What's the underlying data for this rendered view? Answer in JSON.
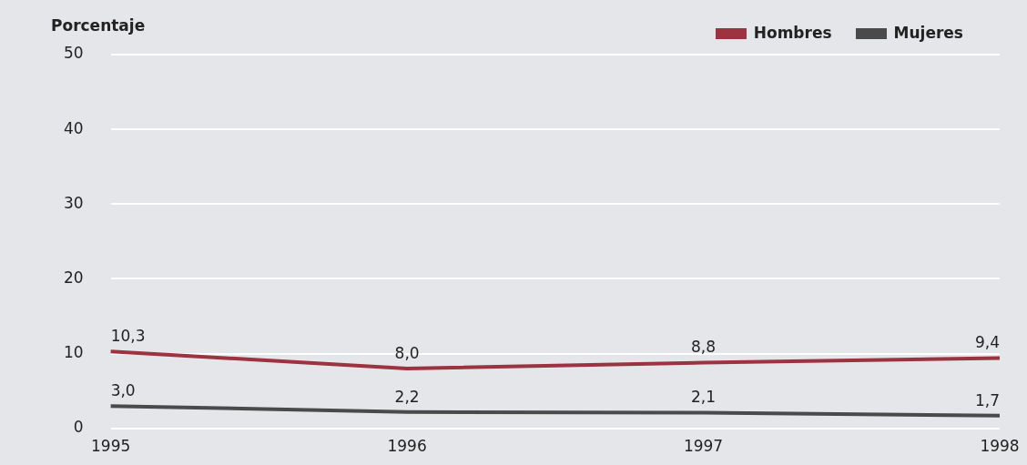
{
  "chart_data": {
    "type": "line",
    "ylabel": "Porcentaje",
    "categories": [
      "1995",
      "1996",
      "1997",
      "1998"
    ],
    "series": [
      {
        "name": "Hombres",
        "color": "#9b3340",
        "values": [
          10.3,
          8.0,
          8.8,
          9.4
        ],
        "value_labels": [
          "10,3",
          "8,0",
          "8,8",
          "9,4"
        ]
      },
      {
        "name": "Mujeres",
        "color": "#4a4a4a",
        "values": [
          3.0,
          2.2,
          2.1,
          1.7
        ],
        "value_labels": [
          "3,0",
          "2,2",
          "2,1",
          "1,7"
        ]
      }
    ],
    "ylim": [
      0,
      50
    ],
    "yticks": [
      0,
      10,
      20,
      30,
      40,
      50
    ],
    "grid": "y",
    "legend": "top right",
    "marker": "none",
    "line_style": "solid"
  }
}
